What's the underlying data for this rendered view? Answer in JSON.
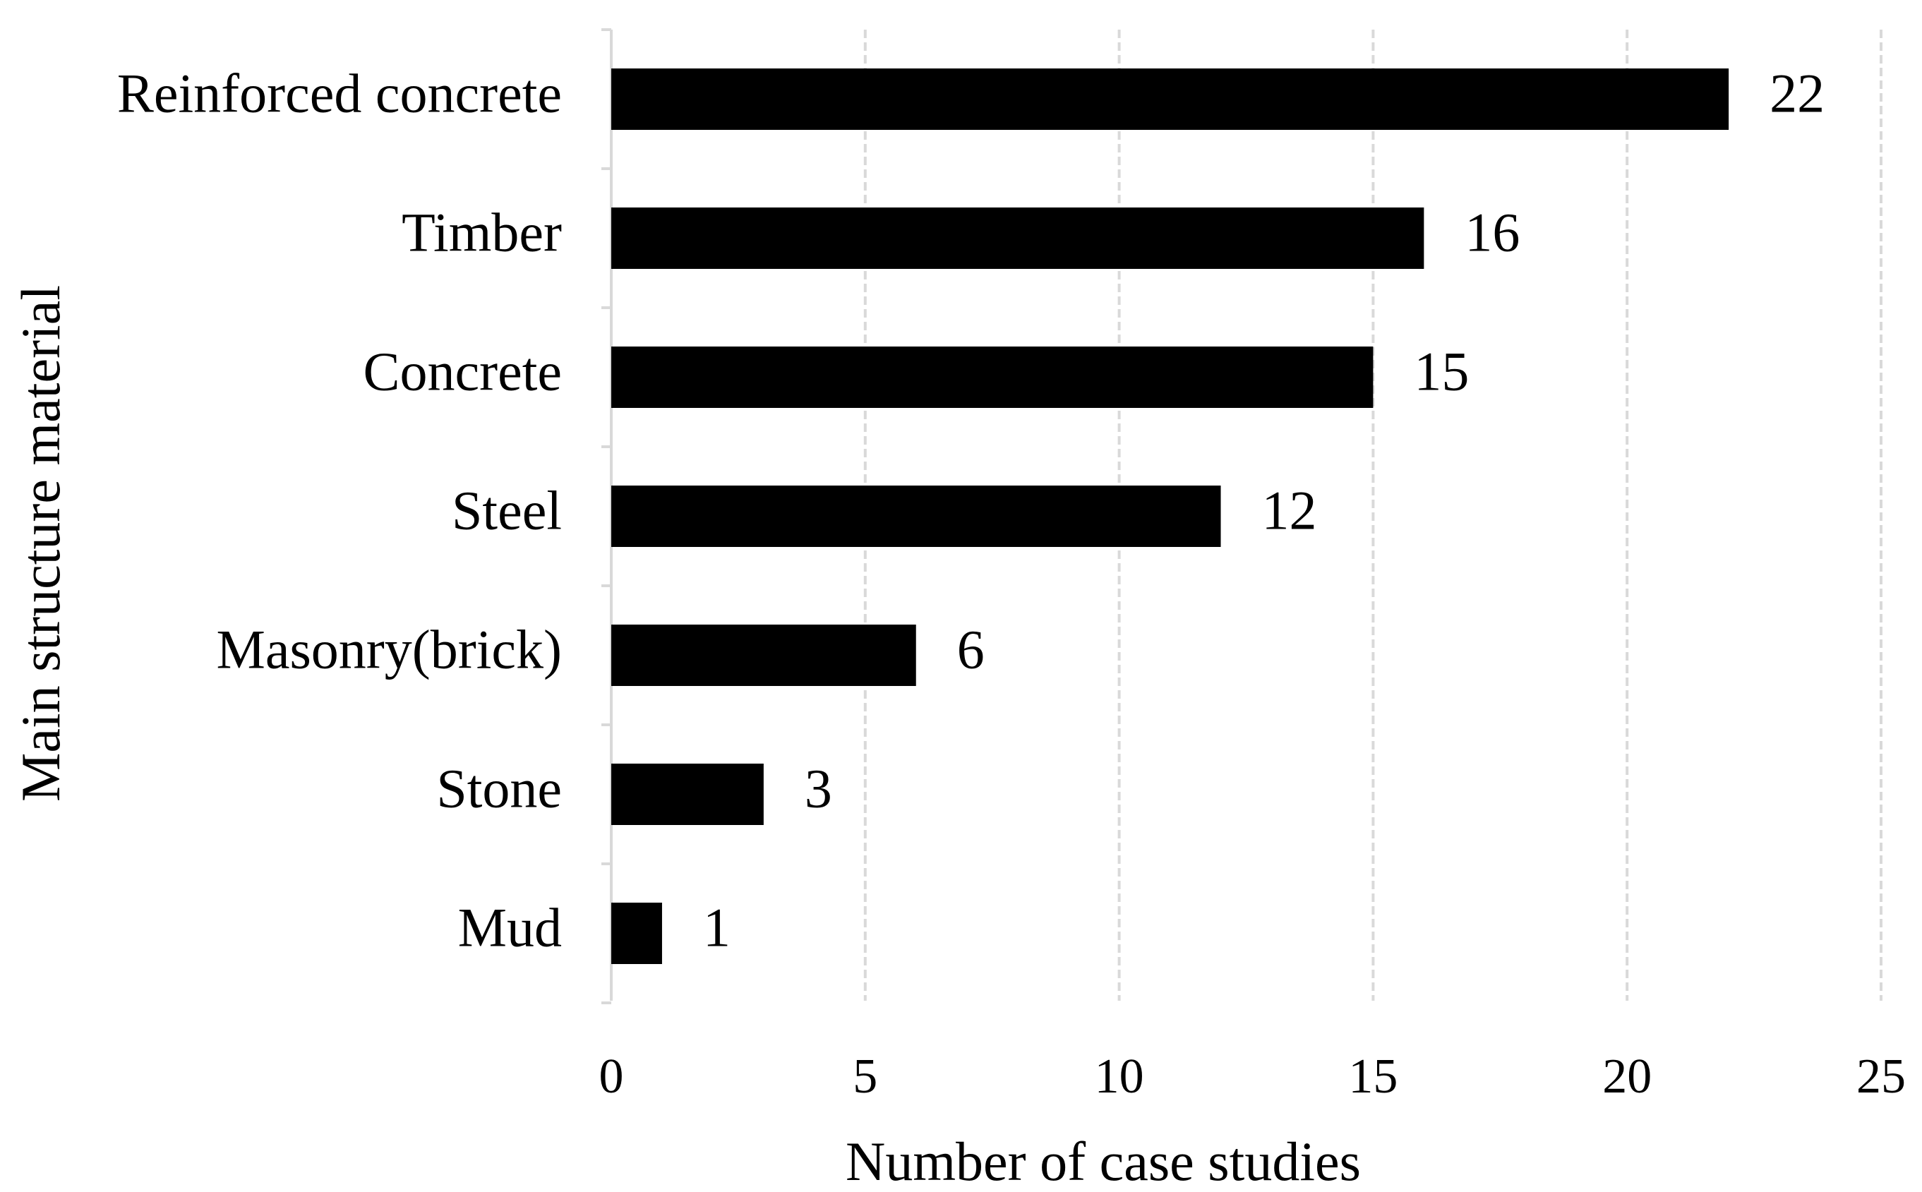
{
  "chart_data": {
    "type": "bar",
    "orientation": "horizontal",
    "categories": [
      "Reinforced concrete",
      "Timber",
      "Concrete",
      "Steel",
      "Masonry(brick)",
      "Stone",
      "Mud"
    ],
    "values": [
      22,
      16,
      15,
      12,
      6,
      3,
      1
    ],
    "data_labels": [
      "22",
      "16",
      "15",
      "12",
      "6",
      "3",
      "1"
    ],
    "xlabel": "Number of case studies",
    "ylabel": "Main structure material",
    "xlim": [
      0,
      25
    ],
    "xticks": [
      0,
      5,
      10,
      15,
      20,
      25
    ],
    "xtick_labels": [
      "0",
      "5",
      "10",
      "15",
      "20",
      "25"
    ],
    "grid": "vertical dashed",
    "legend": "none",
    "bar_color": "#000000",
    "grid_color": "#d9d9d9"
  }
}
